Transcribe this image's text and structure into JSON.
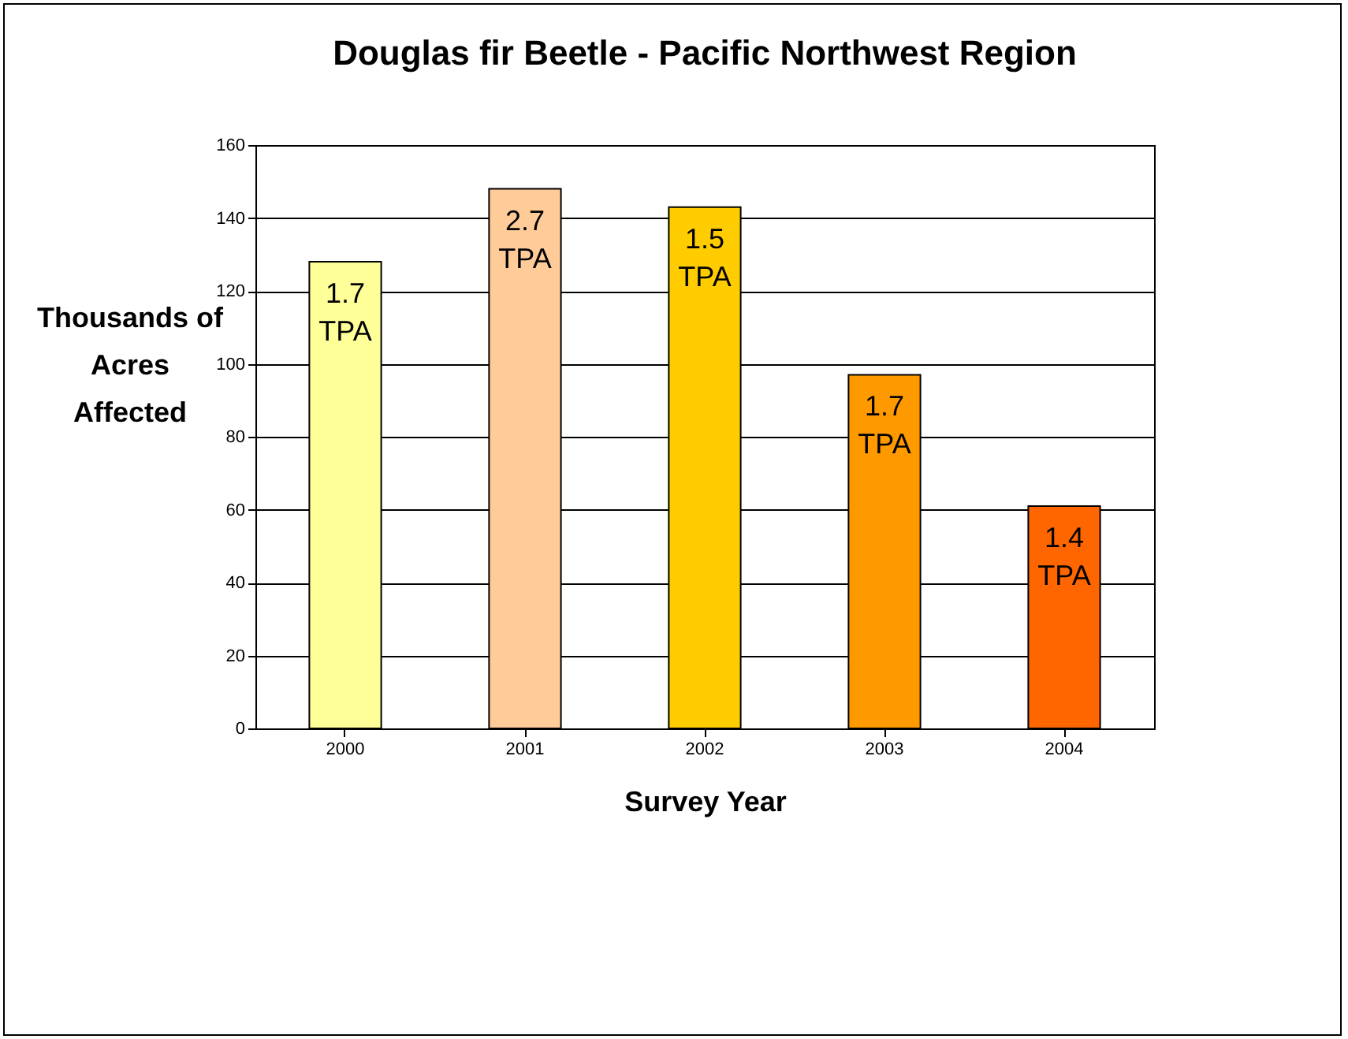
{
  "chart_data": {
    "type": "bar",
    "title": "Douglas fir Beetle - Pacific Northwest Region",
    "xlabel": "Survey Year",
    "ylabel": "Thousands of Acres Affected",
    "categories": [
      "2000",
      "2001",
      "2002",
      "2003",
      "2004"
    ],
    "values": [
      128,
      148,
      143,
      97,
      61
    ],
    "colors": [
      "#ffff99",
      "#ffcc99",
      "#ffcc00",
      "#ff9900",
      "#ff6600"
    ],
    "annotations": [
      {
        "text": "1.7 TPA",
        "x": "2000",
        "y": 128
      },
      {
        "text": "2.7 TPA",
        "x": "2001",
        "y": 148
      },
      {
        "text": "1.5 TPA",
        "x": "2002",
        "y": 143
      },
      {
        "text": "1.7 TPA",
        "x": "2003",
        "y": 97
      },
      {
        "text": "1.4 TPA",
        "x": "2004",
        "y": 61
      }
    ],
    "ylim": [
      0,
      160
    ],
    "yticks": [
      0,
      20,
      40,
      60,
      80,
      100,
      120,
      140,
      160
    ],
    "grid": "y",
    "legend": false
  }
}
